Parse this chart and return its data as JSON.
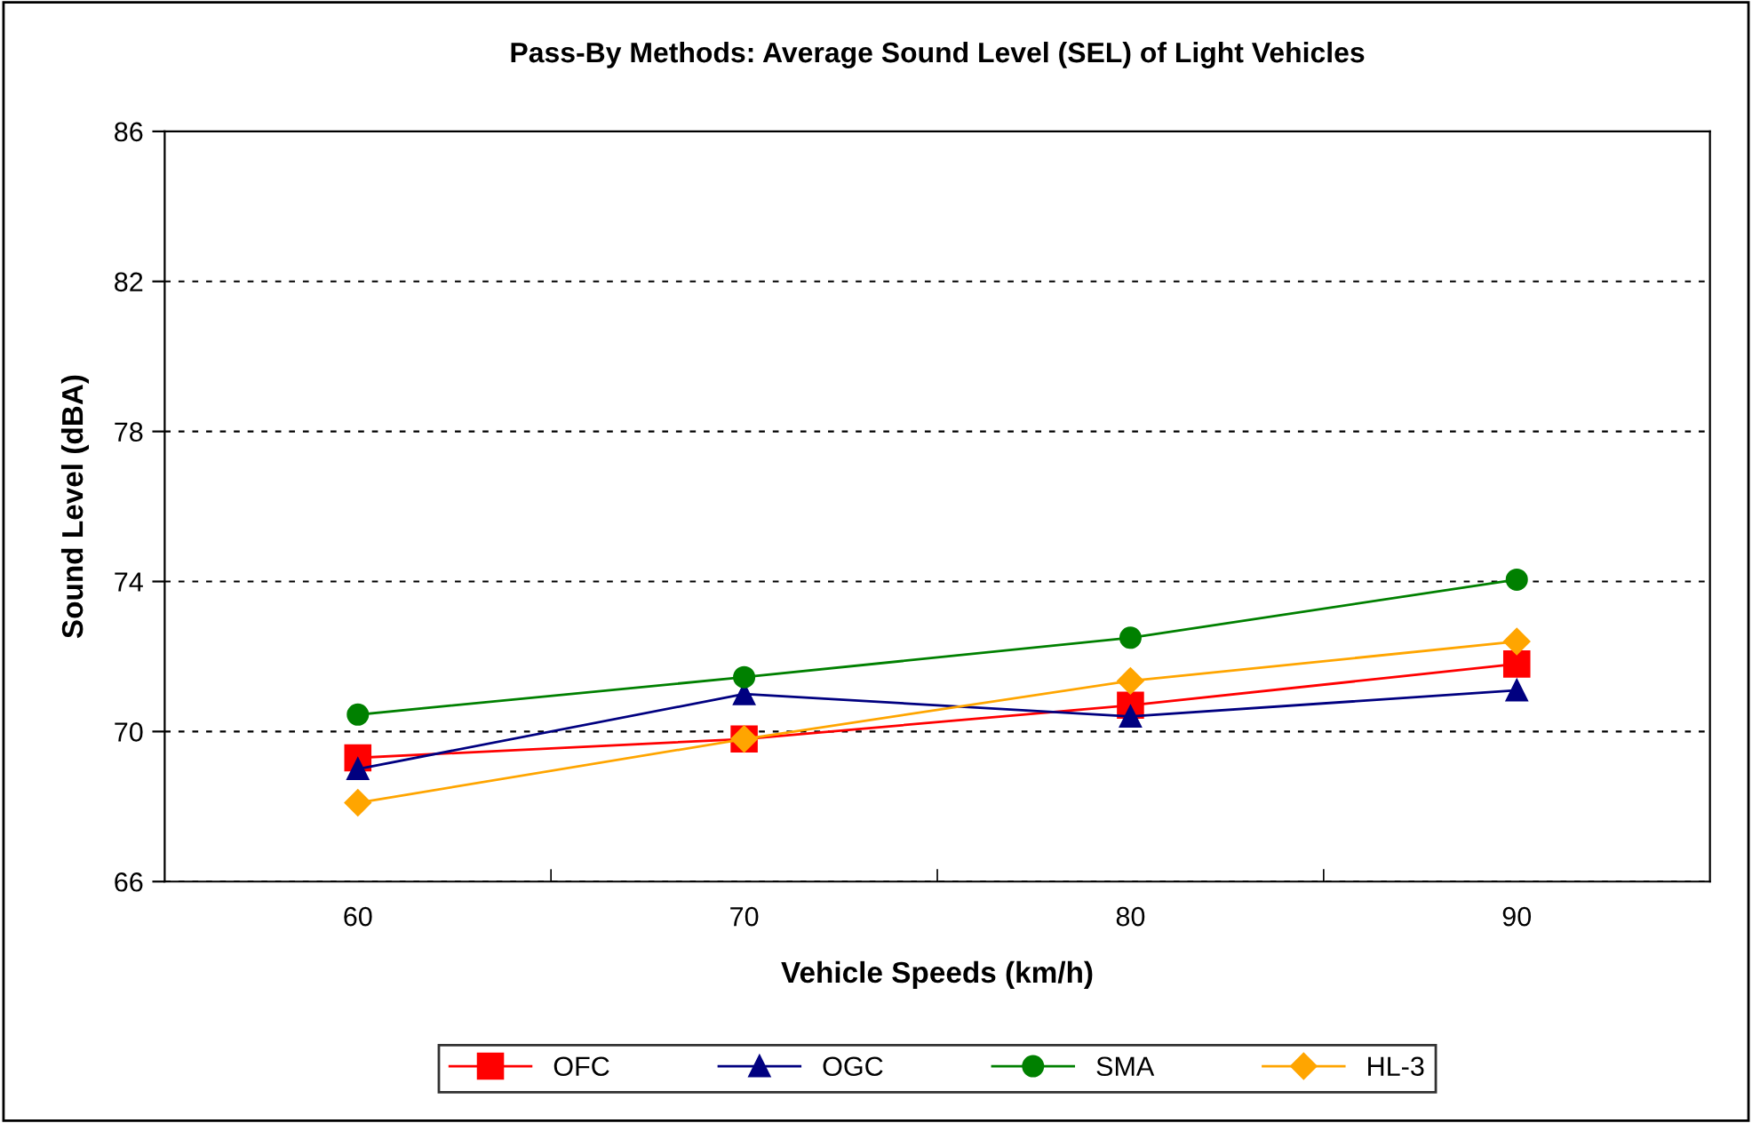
{
  "chart_data": {
    "type": "line",
    "title": "Pass-By Methods: Average Sound Level (SEL) of Light Vehicles",
    "xlabel": "Vehicle Speeds (km/h)",
    "ylabel": "Sound Level (dBA)",
    "categories": [
      "60",
      "70",
      "80",
      "90"
    ],
    "series": [
      {
        "name": "OFC",
        "color": "#ff0000",
        "marker": "square",
        "values": [
          69.3,
          69.8,
          70.7,
          71.8
        ]
      },
      {
        "name": "OGC",
        "color": "#000080",
        "marker": "triangle",
        "values": [
          69.0,
          71.0,
          70.4,
          71.1
        ]
      },
      {
        "name": "SMA",
        "color": "#008000",
        "marker": "circle",
        "values": [
          70.45,
          71.45,
          72.5,
          74.05
        ]
      },
      {
        "name": "HL-3",
        "color": "#ffa500",
        "marker": "diamond",
        "values": [
          68.1,
          69.8,
          71.35,
          72.4
        ]
      }
    ],
    "ylim": [
      66,
      86
    ],
    "yticks": [
      66,
      70,
      74,
      78,
      82,
      86
    ],
    "grid": "y",
    "legend": "bottom",
    "line_style": "solid"
  }
}
